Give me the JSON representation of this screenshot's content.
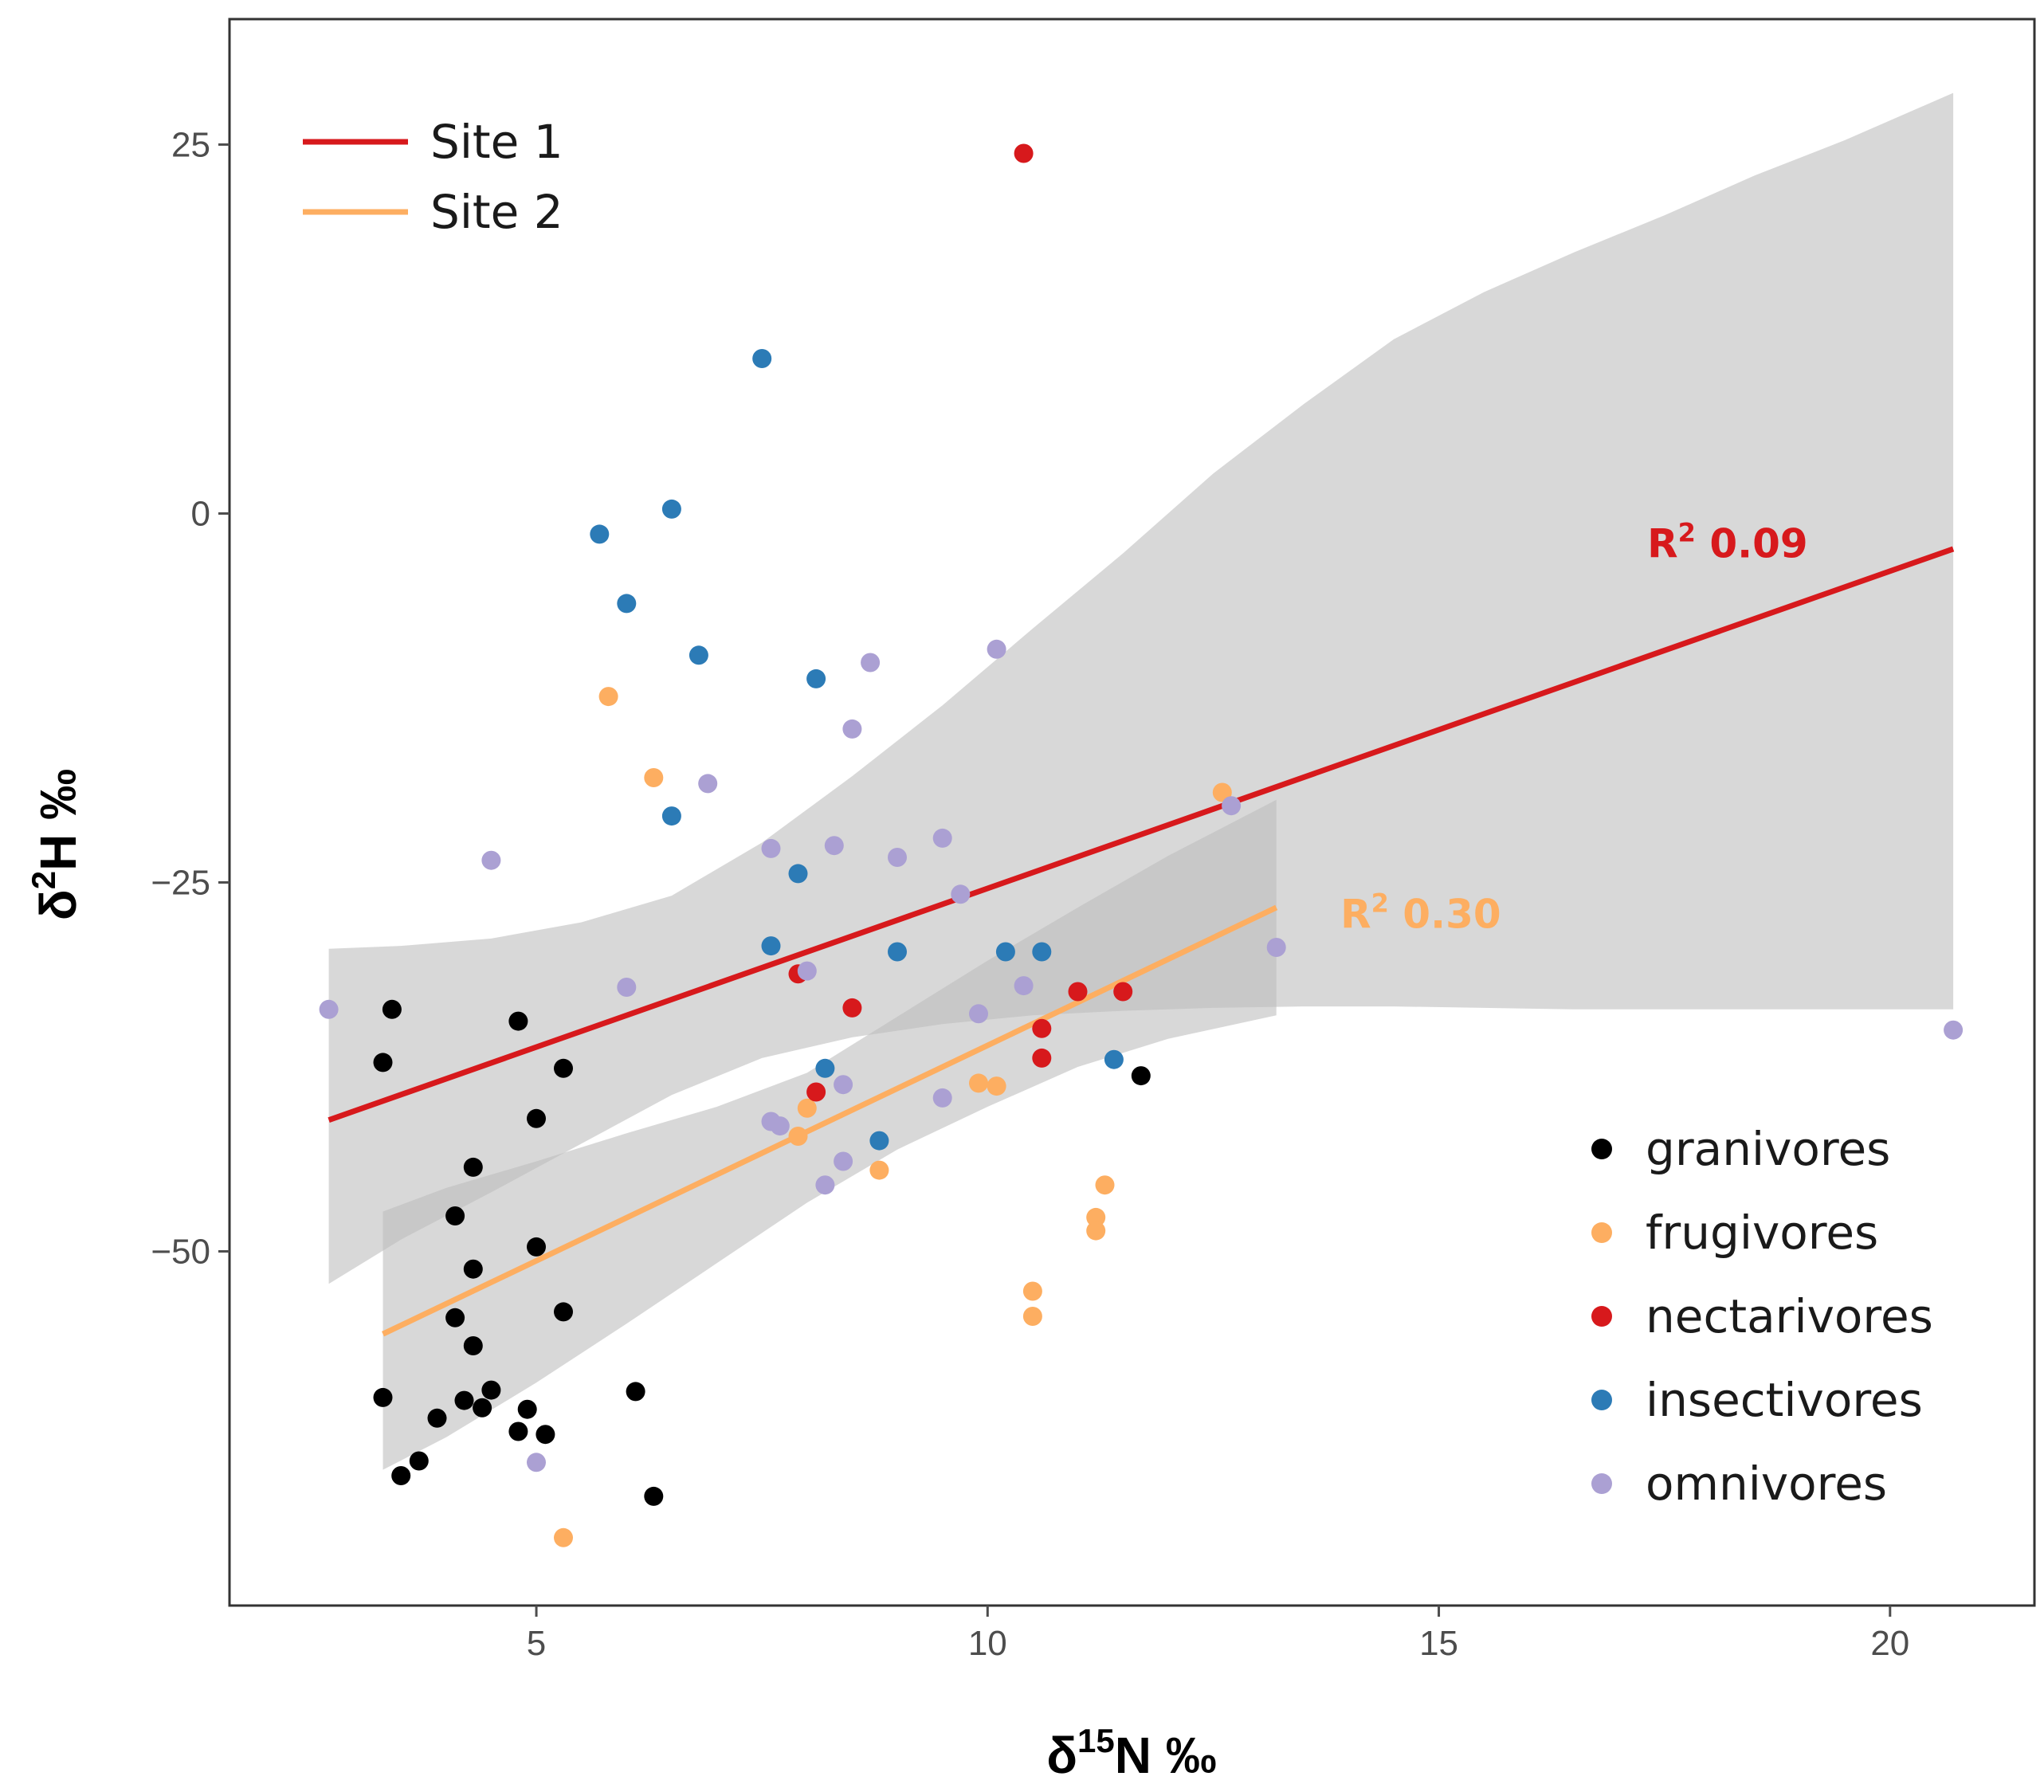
{
  "chart_data": {
    "type": "scatter",
    "xlabel": {
      "base": "δ",
      "sup": "15",
      "rest": "N ‰"
    },
    "ylabel": {
      "base": "δ",
      "sup": "2",
      "rest": "H ‰"
    },
    "xlim": [
      1.6,
      21.6
    ],
    "ylim": [
      -74,
      33.5
    ],
    "x_ticks": [
      5,
      10,
      15,
      20
    ],
    "x_tick_labels": [
      "5",
      "10",
      "15",
      "20"
    ],
    "y_ticks": [
      25,
      0,
      -25,
      -50
    ],
    "y_tick_labels": [
      "25",
      "0",
      "−25",
      "−50"
    ],
    "grid": false,
    "groups": [
      {
        "name": "granivores",
        "color": "#000000",
        "points": [
          [
            3.3,
            -37.2
          ],
          [
            3.4,
            -33.6
          ],
          [
            4.8,
            -34.4
          ],
          [
            5.3,
            -37.6
          ],
          [
            5.0,
            -41.0
          ],
          [
            4.3,
            -44.3
          ],
          [
            4.1,
            -47.6
          ],
          [
            4.3,
            -51.2
          ],
          [
            5.0,
            -49.7
          ],
          [
            4.1,
            -54.5
          ],
          [
            4.3,
            -56.4
          ],
          [
            5.3,
            -54.1
          ],
          [
            3.3,
            -59.9
          ],
          [
            3.9,
            -61.3
          ],
          [
            4.2,
            -60.1
          ],
          [
            4.4,
            -60.6
          ],
          [
            4.5,
            -59.4
          ],
          [
            4.9,
            -60.7
          ],
          [
            4.8,
            -62.2
          ],
          [
            5.1,
            -62.4
          ],
          [
            6.1,
            -59.5
          ],
          [
            3.5,
            -65.2
          ],
          [
            3.7,
            -64.2
          ],
          [
            6.3,
            -66.6
          ],
          [
            11.7,
            -38.1
          ]
        ]
      },
      {
        "name": "frugivores",
        "color": "#FDAE61",
        "points": [
          [
            5.8,
            -12.4
          ],
          [
            6.3,
            -17.9
          ],
          [
            12.6,
            -18.9
          ],
          [
            7.9,
            -42.2
          ],
          [
            8.0,
            -40.3
          ],
          [
            8.8,
            -44.5
          ],
          [
            9.9,
            -38.6
          ],
          [
            10.1,
            -38.8
          ],
          [
            11.3,
            -45.5
          ],
          [
            11.2,
            -47.7
          ],
          [
            11.2,
            -48.6
          ],
          [
            10.5,
            -52.7
          ],
          [
            10.5,
            -54.4
          ],
          [
            5.3,
            -69.4
          ]
        ]
      },
      {
        "name": "nectarivores",
        "color": "#D7191C",
        "points": [
          [
            10.4,
            24.4
          ],
          [
            7.9,
            -31.2
          ],
          [
            8.5,
            -33.5
          ],
          [
            8.1,
            -39.2
          ],
          [
            10.6,
            -34.9
          ],
          [
            10.6,
            -36.9
          ],
          [
            11.0,
            -32.4
          ],
          [
            11.5,
            -32.4
          ]
        ]
      },
      {
        "name": "insectivores",
        "color": "#2C7BB6",
        "points": [
          [
            7.5,
            10.5
          ],
          [
            6.5,
            0.3
          ],
          [
            5.7,
            -1.4
          ],
          [
            6.0,
            -6.1
          ],
          [
            6.8,
            -9.6
          ],
          [
            8.1,
            -11.2
          ],
          [
            6.5,
            -20.5
          ],
          [
            7.9,
            -24.4
          ],
          [
            7.6,
            -29.3
          ],
          [
            9.0,
            -29.7
          ],
          [
            10.2,
            -29.7
          ],
          [
            10.6,
            -29.7
          ],
          [
            8.2,
            -37.6
          ],
          [
            8.8,
            -42.5
          ],
          [
            11.4,
            -37.0
          ]
        ]
      },
      {
        "name": "omnivores",
        "color": "#ABA0D3",
        "points": [
          [
            8.7,
            -10.1
          ],
          [
            10.1,
            -9.2
          ],
          [
            8.5,
            -14.6
          ],
          [
            6.9,
            -18.3
          ],
          [
            4.5,
            -23.5
          ],
          [
            7.6,
            -22.7
          ],
          [
            8.3,
            -22.5
          ],
          [
            9.0,
            -23.3
          ],
          [
            9.5,
            -22.0
          ],
          [
            9.7,
            -25.8
          ],
          [
            12.7,
            -19.8
          ],
          [
            13.2,
            -29.4
          ],
          [
            8.0,
            -31.0
          ],
          [
            6.0,
            -32.1
          ],
          [
            10.4,
            -32.0
          ],
          [
            9.9,
            -33.9
          ],
          [
            2.7,
            -33.6
          ],
          [
            8.4,
            -38.7
          ],
          [
            9.5,
            -39.6
          ],
          [
            7.6,
            -41.2
          ],
          [
            7.7,
            -41.5
          ],
          [
            8.4,
            -43.9
          ],
          [
            8.2,
            -45.5
          ],
          [
            5.0,
            -64.3
          ],
          [
            20.7,
            -35.0
          ]
        ]
      }
    ],
    "fits": [
      {
        "name": "Site 1",
        "color": "#D7191C",
        "x": [
          2.7,
          20.7
        ],
        "y": [
          -41.1,
          -2.4
        ],
        "ci_upper": [
          [
            2.7,
            -29.5
          ],
          [
            3.5,
            -29.3
          ],
          [
            4.5,
            -28.8
          ],
          [
            5.5,
            -27.7
          ],
          [
            6.5,
            -25.9
          ],
          [
            7.5,
            -22.3
          ],
          [
            8.5,
            -17.8
          ],
          [
            9.5,
            -13.0
          ],
          [
            10.5,
            -7.8
          ],
          [
            11.5,
            -2.7
          ],
          [
            12.5,
            2.7
          ],
          [
            13.5,
            7.4
          ],
          [
            14.5,
            11.8
          ],
          [
            15.5,
            15.0
          ],
          [
            16.5,
            17.7
          ],
          [
            17.5,
            20.2
          ],
          [
            18.5,
            22.9
          ],
          [
            19.5,
            25.3
          ],
          [
            20.7,
            28.5
          ]
        ],
        "ci_lower": [
          [
            20.7,
            -33.6
          ],
          [
            19.5,
            -33.6
          ],
          [
            18.5,
            -33.6
          ],
          [
            17.5,
            -33.6
          ],
          [
            16.5,
            -33.6
          ],
          [
            15.5,
            -33.5
          ],
          [
            14.5,
            -33.4
          ],
          [
            13.5,
            -33.4
          ],
          [
            12.5,
            -33.5
          ],
          [
            11.5,
            -33.7
          ],
          [
            10.5,
            -34.0
          ],
          [
            9.5,
            -34.6
          ],
          [
            8.5,
            -35.5
          ],
          [
            7.5,
            -36.9
          ],
          [
            6.5,
            -39.4
          ],
          [
            5.5,
            -42.7
          ],
          [
            4.5,
            -46.0
          ],
          [
            3.5,
            -49.2
          ],
          [
            2.7,
            -52.2
          ]
        ]
      },
      {
        "name": "Site 2",
        "color": "#FDAE61",
        "x": [
          3.3,
          13.2
        ],
        "y": [
          -55.6,
          -26.7
        ],
        "ci_upper": [
          [
            3.3,
            -47.3
          ],
          [
            4.0,
            -45.7
          ],
          [
            5.0,
            -43.9
          ],
          [
            6.0,
            -42.0
          ],
          [
            7.0,
            -40.2
          ],
          [
            8.0,
            -37.9
          ],
          [
            9.0,
            -34.1
          ],
          [
            10.0,
            -30.3
          ],
          [
            11.0,
            -26.7
          ],
          [
            12.0,
            -23.2
          ],
          [
            13.2,
            -19.4
          ]
        ],
        "ci_lower": [
          [
            13.2,
            -34.0
          ],
          [
            12.0,
            -35.6
          ],
          [
            11.0,
            -37.5
          ],
          [
            10.0,
            -40.2
          ],
          [
            9.0,
            -43.1
          ],
          [
            8.0,
            -46.7
          ],
          [
            7.0,
            -50.8
          ],
          [
            6.0,
            -54.9
          ],
          [
            5.0,
            -58.9
          ],
          [
            4.0,
            -62.6
          ],
          [
            3.3,
            -64.8
          ]
        ]
      }
    ],
    "annotations": [
      {
        "name": "site1-r2",
        "text_base": "R",
        "text_sup": "2",
        "text_rest": " 0.09",
        "color": "#D7191C",
        "x": 18.2,
        "y": -2.0
      },
      {
        "name": "site2-r2",
        "text_base": "R",
        "text_sup": "2",
        "text_rest": " 0.30",
        "color": "#FDAE61",
        "x": 14.8,
        "y": -27.1
      }
    ],
    "legend_lines": {
      "position": "top-left",
      "entries": [
        {
          "label": "Site 1",
          "color": "#D7191C"
        },
        {
          "label": "Site 2",
          "color": "#FDAE61"
        }
      ]
    },
    "legend_points": {
      "position": "bottom-right",
      "entries": [
        {
          "label": "granivores",
          "color": "#000000"
        },
        {
          "label": "frugivores",
          "color": "#FDAE61"
        },
        {
          "label": "nectarivores",
          "color": "#D7191C"
        },
        {
          "label": "insectivores",
          "color": "#2C7BB6"
        },
        {
          "label": "omnivores",
          "color": "#ABA0D3"
        }
      ]
    },
    "ribbon_color": "#BEBEBE",
    "panel_border_color": "#333333",
    "tick_color": "#4d4d4d"
  }
}
